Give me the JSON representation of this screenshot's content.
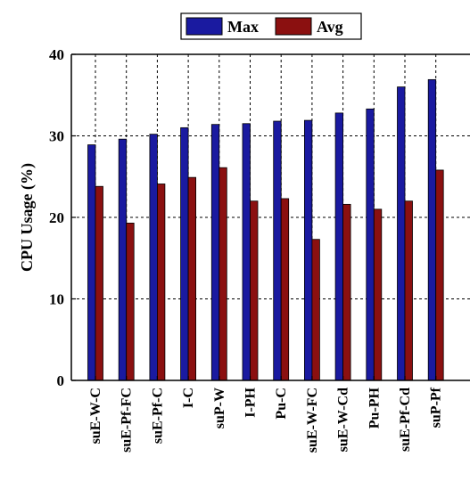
{
  "chart_data": {
    "type": "bar",
    "title": "",
    "xlabel": "",
    "ylabel": "CPU Usage (%)",
    "ylim": [
      0,
      40
    ],
    "yticks": [
      0,
      10,
      20,
      30,
      40
    ],
    "grid": true,
    "legend_position": "top",
    "categories": [
      "suE-W-C",
      "suE-Pf-FC",
      "suE-Pf-C",
      "I-C",
      "suP-W",
      "I-PH",
      "Pu-C",
      "suE-W-FC",
      "suE-W-Cd",
      "Pu-PH",
      "suE-Pf-Cd",
      "suP-Pf"
    ],
    "series": [
      {
        "name": "Max",
        "color": "#1a1aa0",
        "values": [
          28.9,
          29.6,
          30.2,
          31.0,
          31.4,
          31.5,
          31.8,
          31.9,
          32.8,
          33.3,
          36.0,
          36.9
        ]
      },
      {
        "name": "Avg",
        "color": "#8b1010",
        "values": [
          23.8,
          19.3,
          24.1,
          24.9,
          26.1,
          22.0,
          22.3,
          17.3,
          21.6,
          21.0,
          22.0,
          25.8
        ]
      }
    ]
  }
}
